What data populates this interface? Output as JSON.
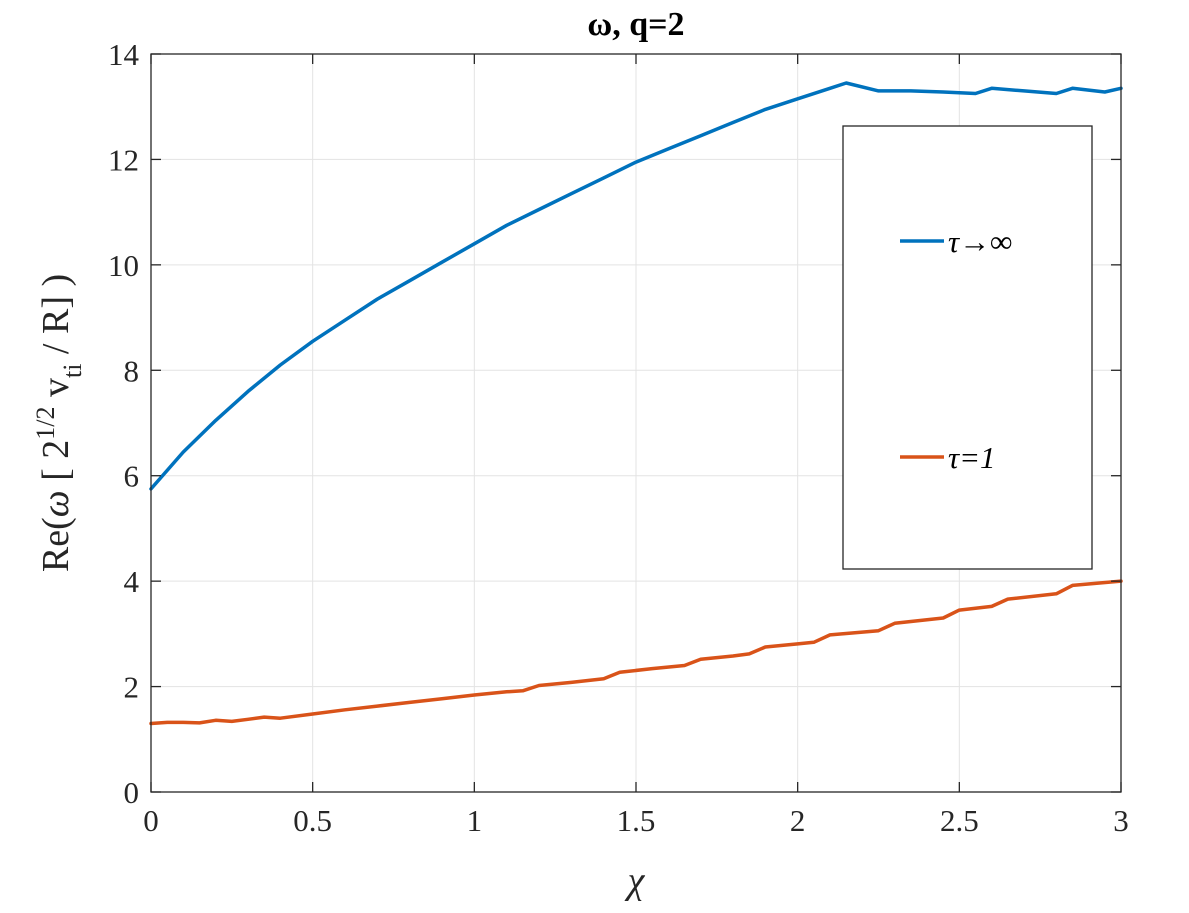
{
  "chart_data": {
    "type": "line",
    "title": "ω, q=2",
    "xlabel": "χ",
    "ylabel": "Re(ω [ 2^{1/2} v_{ti} / R] )",
    "ylabel_parts": {
      "prefix": "Re(",
      "omega": "ω",
      "bracket_open": " [ 2",
      "sup": "1/2",
      "v": " v",
      "sub": "ti",
      "suffix": " / R] )"
    },
    "xlim": [
      0,
      3
    ],
    "ylim": [
      0,
      14
    ],
    "xticks": [
      0,
      0.5,
      1,
      1.5,
      2,
      2.5,
      3
    ],
    "xtick_labels": [
      "0",
      "0.5",
      "1",
      "1.5",
      "2",
      "2.5",
      "3"
    ],
    "yticks": [
      0,
      2,
      4,
      6,
      8,
      10,
      12,
      14
    ],
    "ytick_labels": [
      "0",
      "2",
      "4",
      "6",
      "8",
      "10",
      "12",
      "14"
    ],
    "grid": true,
    "legend_position": "right",
    "series": [
      {
        "name": "τ→∞",
        "color": "#0072BD",
        "x": [
          0,
          0.1,
          0.2,
          0.3,
          0.4,
          0.5,
          0.6,
          0.7,
          0.8,
          0.9,
          1.0,
          1.1,
          1.2,
          1.3,
          1.4,
          1.5,
          1.6,
          1.7,
          1.8,
          1.9,
          2.0,
          2.1,
          2.15,
          2.25,
          2.35,
          2.45,
          2.55,
          2.6,
          2.7,
          2.8,
          2.85,
          2.95,
          3.0
        ],
        "y": [
          5.75,
          6.45,
          7.05,
          7.6,
          8.1,
          8.55,
          8.95,
          9.35,
          9.7,
          10.05,
          10.4,
          10.75,
          11.05,
          11.35,
          11.65,
          11.95,
          12.2,
          12.45,
          12.7,
          12.95,
          13.15,
          13.35,
          13.45,
          13.3,
          13.3,
          13.28,
          13.25,
          13.35,
          13.3,
          13.25,
          13.35,
          13.28,
          13.35
        ]
      },
      {
        "name": "τ=1",
        "color": "#D95319",
        "x": [
          0,
          0.05,
          0.1,
          0.15,
          0.2,
          0.25,
          0.3,
          0.35,
          0.4,
          0.5,
          0.6,
          0.7,
          0.8,
          0.9,
          1.0,
          1.1,
          1.15,
          1.2,
          1.3,
          1.4,
          1.45,
          1.55,
          1.65,
          1.7,
          1.8,
          1.85,
          1.9,
          2.0,
          2.05,
          2.1,
          2.25,
          2.3,
          2.45,
          2.5,
          2.6,
          2.65,
          2.8,
          2.85,
          3.0
        ],
        "y": [
          1.3,
          1.32,
          1.32,
          1.31,
          1.36,
          1.34,
          1.38,
          1.42,
          1.4,
          1.48,
          1.56,
          1.63,
          1.7,
          1.77,
          1.84,
          1.9,
          1.92,
          2.02,
          2.08,
          2.15,
          2.27,
          2.34,
          2.4,
          2.52,
          2.58,
          2.62,
          2.75,
          2.81,
          2.84,
          2.98,
          3.06,
          3.2,
          3.3,
          3.45,
          3.52,
          3.66,
          3.76,
          3.92,
          4.0
        ]
      }
    ]
  }
}
